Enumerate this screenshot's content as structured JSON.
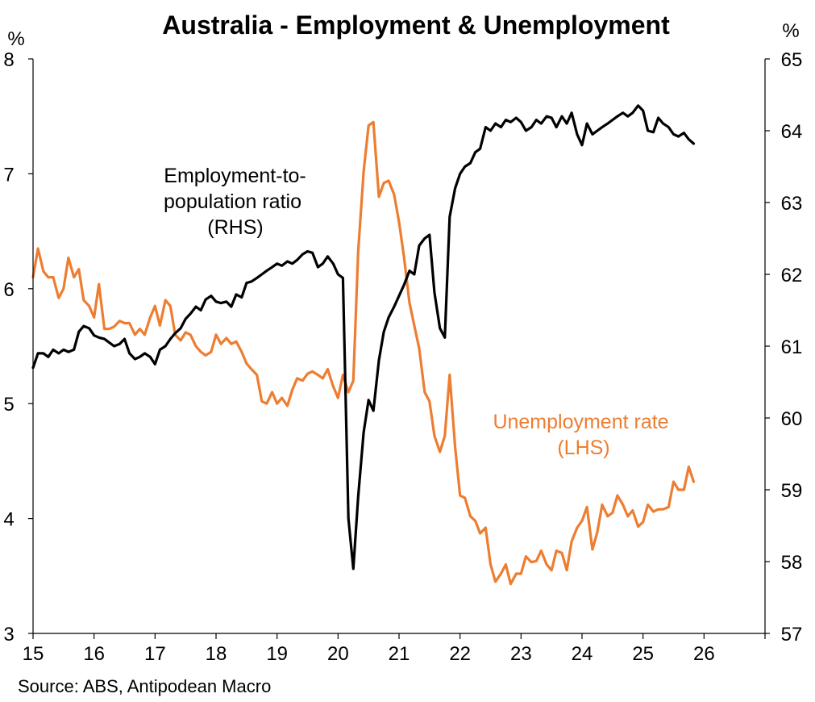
{
  "chart_data": {
    "type": "line",
    "title": "Australia - Employment & Unemployment",
    "left_unit": "%",
    "right_unit": "%",
    "source": "Source: ABS, Antipodean Macro",
    "x_range": [
      15,
      27
    ],
    "x_ticks": [
      "15",
      "16",
      "17",
      "18",
      "19",
      "20",
      "21",
      "22",
      "23",
      "24",
      "25",
      "26"
    ],
    "y_left": {
      "range": [
        3,
        8
      ],
      "ticks": [
        "3",
        "4",
        "5",
        "6",
        "7",
        "8"
      ]
    },
    "y_right": {
      "range": [
        57,
        65
      ],
      "ticks": [
        "57",
        "58",
        "59",
        "60",
        "61",
        "62",
        "63",
        "64",
        "65"
      ]
    },
    "series": [
      {
        "axis": "right",
        "color": "#000000",
        "label_lines": [
          "Employment-to-",
          "population ratio",
          "(RHS)"
        ],
        "x": [
          15.0,
          15.08,
          15.17,
          15.25,
          15.33,
          15.42,
          15.5,
          15.58,
          15.67,
          15.75,
          15.83,
          15.92,
          16.0,
          16.08,
          16.17,
          16.25,
          16.33,
          16.42,
          16.5,
          16.58,
          16.67,
          16.75,
          16.83,
          16.92,
          17.0,
          17.08,
          17.17,
          17.25,
          17.33,
          17.42,
          17.5,
          17.58,
          17.67,
          17.75,
          17.83,
          17.92,
          18.0,
          18.08,
          18.17,
          18.25,
          18.33,
          18.42,
          18.5,
          18.58,
          18.67,
          18.75,
          18.83,
          18.92,
          19.0,
          19.08,
          19.17,
          19.25,
          19.33,
          19.42,
          19.5,
          19.58,
          19.67,
          19.75,
          19.83,
          19.92,
          20.0,
          20.08,
          20.17,
          20.25,
          20.33,
          20.42,
          20.5,
          20.58,
          20.67,
          20.75,
          20.83,
          20.92,
          21.0,
          21.08,
          21.17,
          21.25,
          21.33,
          21.42,
          21.5,
          21.58,
          21.67,
          21.75,
          21.83,
          21.92,
          22.0,
          22.08,
          22.17,
          22.25,
          22.33,
          22.42,
          22.5,
          22.58,
          22.67,
          22.75,
          22.83,
          22.92,
          23.0,
          23.08,
          23.17,
          23.25,
          23.33,
          23.42,
          23.5,
          23.58,
          23.67,
          23.75,
          23.83,
          23.92,
          24.0,
          24.08,
          24.17,
          24.25,
          24.33,
          24.42,
          24.5,
          24.58,
          24.67,
          24.75,
          24.83,
          24.92,
          25.0,
          25.08,
          25.17,
          25.25,
          25.33,
          25.42,
          25.5,
          25.58,
          25.67,
          25.75,
          25.83
        ],
        "values": [
          60.7,
          60.9,
          60.9,
          60.85,
          60.95,
          60.9,
          60.95,
          60.92,
          60.95,
          61.2,
          61.28,
          61.25,
          61.15,
          61.12,
          61.1,
          61.05,
          61.0,
          61.03,
          61.1,
          60.9,
          60.82,
          60.85,
          60.9,
          60.85,
          60.75,
          60.95,
          61.0,
          61.1,
          61.18,
          61.25,
          61.38,
          61.45,
          61.55,
          61.5,
          61.65,
          61.7,
          61.62,
          61.6,
          61.62,
          61.55,
          61.72,
          61.68,
          61.88,
          61.9,
          61.95,
          62.0,
          62.05,
          62.1,
          62.15,
          62.12,
          62.18,
          62.15,
          62.2,
          62.28,
          62.32,
          62.3,
          62.1,
          62.15,
          62.25,
          62.15,
          62.0,
          61.95,
          58.6,
          57.9,
          58.9,
          59.8,
          60.25,
          60.1,
          60.8,
          61.2,
          61.4,
          61.55,
          61.7,
          61.85,
          62.05,
          62.0,
          62.4,
          62.5,
          62.55,
          61.75,
          61.25,
          61.12,
          62.8,
          63.2,
          63.4,
          63.5,
          63.55,
          63.7,
          63.75,
          64.05,
          64.0,
          64.1,
          64.05,
          64.15,
          64.12,
          64.18,
          64.12,
          64.0,
          64.05,
          64.15,
          64.1,
          64.2,
          64.18,
          64.05,
          64.2,
          64.1,
          64.25,
          63.95,
          63.8,
          64.1,
          63.95,
          64.0,
          64.05,
          64.1,
          64.15,
          64.2,
          64.25,
          64.2,
          64.25,
          64.35,
          64.28,
          64.0,
          63.98,
          64.18,
          64.1,
          64.05,
          63.95,
          63.92,
          63.97,
          63.88,
          63.82
        ]
      },
      {
        "axis": "left",
        "color": "#ED7D31",
        "label_lines": [
          "Unemployment rate",
          "(LHS)"
        ],
        "x": [
          15.0,
          15.08,
          15.17,
          15.25,
          15.33,
          15.42,
          15.5,
          15.58,
          15.67,
          15.75,
          15.83,
          15.92,
          16.0,
          16.08,
          16.17,
          16.25,
          16.33,
          16.42,
          16.5,
          16.58,
          16.67,
          16.75,
          16.83,
          16.92,
          17.0,
          17.08,
          17.17,
          17.25,
          17.33,
          17.42,
          17.5,
          17.58,
          17.67,
          17.75,
          17.83,
          17.92,
          18.0,
          18.08,
          18.17,
          18.25,
          18.33,
          18.42,
          18.5,
          18.58,
          18.67,
          18.75,
          18.83,
          18.92,
          19.0,
          19.08,
          19.17,
          19.25,
          19.33,
          19.42,
          19.5,
          19.58,
          19.67,
          19.75,
          19.83,
          19.92,
          20.0,
          20.08,
          20.17,
          20.25,
          20.33,
          20.42,
          20.5,
          20.58,
          20.67,
          20.75,
          20.83,
          20.92,
          21.0,
          21.08,
          21.17,
          21.25,
          21.33,
          21.42,
          21.5,
          21.58,
          21.67,
          21.75,
          21.83,
          21.92,
          22.0,
          22.08,
          22.17,
          22.25,
          22.33,
          22.42,
          22.5,
          22.58,
          22.67,
          22.75,
          22.83,
          22.92,
          23.0,
          23.08,
          23.17,
          23.25,
          23.33,
          23.42,
          23.5,
          23.58,
          23.67,
          23.75,
          23.83,
          23.92,
          24.0,
          24.08,
          24.17,
          24.25,
          24.33,
          24.42,
          24.5,
          24.58,
          24.67,
          24.75,
          24.83,
          24.92,
          25.0,
          25.08,
          25.17,
          25.25,
          25.33,
          25.42,
          25.5,
          25.58,
          25.67,
          25.75,
          25.83
        ],
        "values": [
          6.1,
          6.35,
          6.15,
          6.1,
          6.1,
          5.92,
          6.0,
          6.27,
          6.1,
          6.17,
          5.9,
          5.85,
          5.75,
          6.04,
          5.65,
          5.65,
          5.67,
          5.72,
          5.7,
          5.7,
          5.6,
          5.65,
          5.6,
          5.75,
          5.85,
          5.68,
          5.9,
          5.85,
          5.6,
          5.55,
          5.62,
          5.6,
          5.5,
          5.45,
          5.42,
          5.45,
          5.6,
          5.52,
          5.57,
          5.52,
          5.54,
          5.45,
          5.35,
          5.3,
          5.25,
          5.02,
          5.0,
          5.1,
          5.0,
          5.05,
          4.98,
          5.12,
          5.22,
          5.2,
          5.26,
          5.28,
          5.25,
          5.22,
          5.3,
          5.15,
          5.05,
          5.25,
          5.1,
          5.2,
          6.32,
          7.02,
          7.42,
          7.45,
          6.8,
          6.92,
          6.94,
          6.82,
          6.58,
          6.28,
          5.88,
          5.68,
          5.48,
          5.1,
          5.02,
          4.72,
          4.58,
          4.72,
          5.25,
          4.62,
          4.2,
          4.18,
          4.02,
          3.98,
          3.87,
          3.92,
          3.6,
          3.45,
          3.52,
          3.6,
          3.43,
          3.52,
          3.52,
          3.67,
          3.62,
          3.63,
          3.72,
          3.6,
          3.55,
          3.72,
          3.7,
          3.55,
          3.8,
          3.92,
          3.98,
          4.1,
          3.73,
          3.88,
          4.12,
          4.02,
          4.05,
          4.2,
          4.12,
          4.02,
          4.07,
          3.93,
          3.97,
          4.12,
          4.06,
          4.08,
          4.08,
          4.1,
          4.32,
          4.25,
          4.25,
          4.45,
          4.32
        ]
      }
    ]
  }
}
